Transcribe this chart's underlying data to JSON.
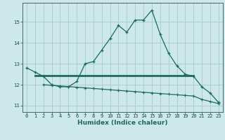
{
  "xlabel": "Humidex (Indice chaleur)",
  "background_color": "#cce8e8",
  "grid_color": "#aacfcf",
  "line_color": "#1a6b5a",
  "xlim": [
    -0.5,
    23.5
  ],
  "ylim": [
    10.7,
    15.9
  ],
  "yticks": [
    11,
    12,
    13,
    14,
    15
  ],
  "xticks": [
    0,
    1,
    2,
    3,
    4,
    5,
    6,
    7,
    8,
    9,
    10,
    11,
    12,
    13,
    14,
    15,
    16,
    17,
    18,
    19,
    20,
    21,
    22,
    23
  ],
  "curve1_x": [
    0,
    1,
    2,
    3,
    4,
    5,
    6,
    7,
    8,
    9,
    10,
    11,
    12,
    13,
    14,
    15,
    16,
    17,
    18,
    19,
    20,
    21,
    22,
    23
  ],
  "curve1_y": [
    12.8,
    12.6,
    12.4,
    12.0,
    11.9,
    11.9,
    12.15,
    13.0,
    13.1,
    13.65,
    14.2,
    14.82,
    14.5,
    15.08,
    15.08,
    15.55,
    14.4,
    13.5,
    12.9,
    12.5,
    12.4,
    11.9,
    11.6,
    11.15
  ],
  "curve2_x": [
    1,
    20
  ],
  "curve2_y": [
    12.45,
    12.45
  ],
  "curve3_x": [
    2,
    3,
    4,
    5,
    6,
    7,
    8,
    9,
    10,
    11,
    12,
    13,
    14,
    15,
    16,
    17,
    18,
    19,
    20,
    21,
    22,
    23
  ],
  "curve3_y": [
    12.0,
    11.97,
    11.94,
    11.91,
    11.88,
    11.85,
    11.82,
    11.79,
    11.76,
    11.73,
    11.7,
    11.67,
    11.64,
    11.61,
    11.58,
    11.55,
    11.52,
    11.49,
    11.46,
    11.3,
    11.2,
    11.1
  ]
}
